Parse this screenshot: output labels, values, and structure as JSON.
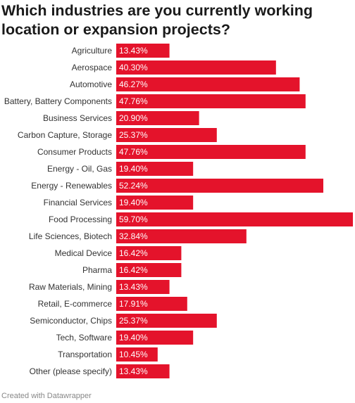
{
  "chart_data": {
    "type": "bar",
    "orientation": "horizontal",
    "title": "Which industries are you currently working location or expansion projects?",
    "categories": [
      "Agriculture",
      "Aerospace",
      "Automotive",
      "Battery, Battery Components",
      "Business Services",
      "Carbon Capture, Storage",
      "Consumer Products",
      "Energy - Oil, Gas",
      "Energy - Renewables",
      "Financial Services",
      "Food Processing",
      "Life Sciences, Biotech",
      "Medical Device",
      "Pharma",
      "Raw Materials, Mining",
      "Retail, E-commerce",
      "Semiconductor, Chips",
      "Tech, Software",
      "Transportation",
      "Other (please specify)"
    ],
    "values": [
      13.43,
      40.3,
      46.27,
      47.76,
      20.9,
      25.37,
      47.76,
      19.4,
      52.24,
      19.4,
      59.7,
      32.84,
      16.42,
      16.42,
      13.43,
      17.91,
      25.37,
      19.4,
      10.45,
      13.43
    ],
    "value_labels": [
      "13.43%",
      "40.30%",
      "46.27%",
      "47.76%",
      "20.90%",
      "25.37%",
      "47.76%",
      "19.40%",
      "52.24%",
      "19.40%",
      "59.70%",
      "32.84%",
      "16.42%",
      "16.42%",
      "13.43%",
      "17.91%",
      "25.37%",
      "19.40%",
      "10.45%",
      "13.43%"
    ],
    "xlim": [
      0,
      59.7
    ],
    "bar_color": "#e4132b",
    "grid": false,
    "legend": "none"
  },
  "footer": "Created with Datawrapper"
}
